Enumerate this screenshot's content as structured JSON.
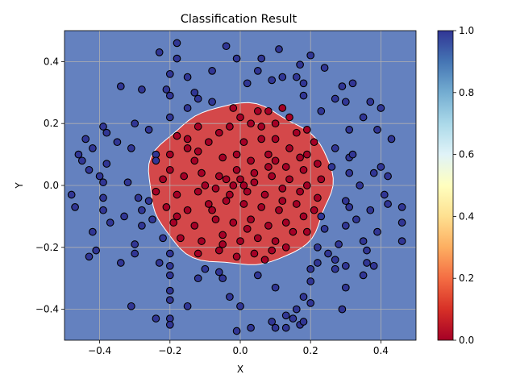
{
  "chart_data": {
    "type": "scatter",
    "title": "Classification Result",
    "xlabel": "X",
    "ylabel": "Y",
    "xlim": [
      -0.5,
      0.5
    ],
    "ylim": [
      -0.5,
      0.5
    ],
    "grid": true,
    "xticks": [
      "−0.4",
      "−0.2",
      "0.0",
      "0.2",
      "0.4"
    ],
    "yticks": [
      "−0.4",
      "−0.2",
      "0.0",
      "0.2",
      "0.4"
    ],
    "decision_region": {
      "shape": "circle",
      "center": [
        0.0,
        0.0
      ],
      "radius": 0.26,
      "inside_value": 0.0,
      "outside_value": 1.0,
      "inside_color": "#d4484a",
      "outside_color": "#6481bf"
    },
    "colorbar": {
      "colormap": "RdYlBu",
      "min": 0.0,
      "max": 1.0,
      "ticks": [
        "0.0",
        "0.2",
        "0.4",
        "0.6",
        "0.8",
        "1.0"
      ]
    },
    "series": [
      {
        "class": 0,
        "color": "#a50026",
        "points": [
          [
            -0.02,
            0.25
          ],
          [
            0.0,
            0.22
          ],
          [
            0.05,
            0.24
          ],
          [
            0.08,
            0.24
          ],
          [
            0.12,
            0.25
          ],
          [
            0.14,
            0.22
          ],
          [
            0.19,
            0.18
          ],
          [
            -0.12,
            0.19
          ],
          [
            -0.18,
            0.16
          ],
          [
            -0.06,
            0.17
          ],
          [
            -0.03,
            0.19
          ],
          [
            0.03,
            0.2
          ],
          [
            0.1,
            0.2
          ],
          [
            0.16,
            0.17
          ],
          [
            -0.2,
            0.1
          ],
          [
            -0.15,
            0.12
          ],
          [
            -0.09,
            0.14
          ],
          [
            0.01,
            0.14
          ],
          [
            0.06,
            0.15
          ],
          [
            0.1,
            0.15
          ],
          [
            0.14,
            0.12
          ],
          [
            0.19,
            0.1
          ],
          [
            0.21,
            0.14
          ],
          [
            -0.2,
            0.05
          ],
          [
            -0.13,
            0.08
          ],
          [
            -0.05,
            0.09
          ],
          [
            0.03,
            0.08
          ],
          [
            0.08,
            0.1
          ],
          [
            0.13,
            0.06
          ],
          [
            0.18,
            0.05
          ],
          [
            0.22,
            0.07
          ],
          [
            -0.22,
            0.02
          ],
          [
            -0.16,
            0.03
          ],
          [
            -0.11,
            0.04
          ],
          [
            -0.06,
            0.03
          ],
          [
            -0.01,
            0.05
          ],
          [
            0.04,
            0.04
          ],
          [
            0.09,
            0.03
          ],
          [
            0.14,
            0.02
          ],
          [
            0.19,
            0.0
          ],
          [
            0.23,
            0.02
          ],
          [
            -0.24,
            -0.02
          ],
          [
            -0.18,
            -0.03
          ],
          [
            -0.12,
            -0.02
          ],
          [
            -0.07,
            -0.01
          ],
          [
            -0.02,
            0.0
          ],
          [
            0.02,
            -0.02
          ],
          [
            0.07,
            -0.03
          ],
          [
            0.12,
            -0.01
          ],
          [
            0.17,
            -0.02
          ],
          [
            0.22,
            -0.04
          ],
          [
            -0.21,
            -0.07
          ],
          [
            -0.15,
            -0.08
          ],
          [
            -0.09,
            -0.06
          ],
          [
            -0.04,
            -0.05
          ],
          [
            0.01,
            -0.06
          ],
          [
            0.06,
            -0.07
          ],
          [
            0.11,
            -0.08
          ],
          [
            0.16,
            -0.06
          ],
          [
            0.21,
            -0.08
          ],
          [
            -0.19,
            -0.12
          ],
          [
            -0.13,
            -0.13
          ],
          [
            -0.07,
            -0.11
          ],
          [
            -0.02,
            -0.12
          ],
          [
            0.03,
            -0.11
          ],
          [
            0.08,
            -0.13
          ],
          [
            0.13,
            -0.12
          ],
          [
            0.18,
            -0.1
          ],
          [
            -0.17,
            -0.17
          ],
          [
            -0.11,
            -0.18
          ],
          [
            -0.05,
            -0.16
          ],
          [
            0.0,
            -0.18
          ],
          [
            0.05,
            -0.17
          ],
          [
            0.1,
            -0.18
          ],
          [
            0.15,
            -0.15
          ],
          [
            0.19,
            -0.15
          ],
          [
            -0.12,
            -0.22
          ],
          [
            -0.06,
            -0.21
          ],
          [
            -0.01,
            -0.23
          ],
          [
            0.04,
            -0.22
          ],
          [
            0.09,
            -0.21
          ],
          [
            0.13,
            -0.2
          ],
          [
            0.07,
            -0.24
          ],
          [
            -0.1,
            0.0
          ],
          [
            -0.04,
            0.02
          ],
          [
            0.0,
            0.02
          ],
          [
            0.01,
            0.0
          ],
          [
            -0.03,
            -0.03
          ],
          [
            0.04,
            0.01
          ],
          [
            -0.08,
            -0.08
          ],
          [
            0.1,
            0.08
          ],
          [
            -0.15,
            0.15
          ],
          [
            0.06,
            0.19
          ],
          [
            -0.01,
            0.1
          ],
          [
            0.12,
            -0.05
          ],
          [
            -0.05,
            -0.19
          ],
          [
            0.17,
            0.09
          ],
          [
            -0.18,
            -0.1
          ],
          [
            0.02,
            -0.14
          ],
          [
            0.08,
            0.06
          ],
          [
            -0.12,
            0.11
          ]
        ]
      },
      {
        "class": 1,
        "color": "#313695",
        "points": [
          [
            -0.18,
            0.46
          ],
          [
            -0.04,
            0.45
          ],
          [
            0.11,
            0.44
          ],
          [
            0.2,
            0.42
          ],
          [
            -0.23,
            0.43
          ],
          [
            -0.18,
            0.41
          ],
          [
            -0.01,
            0.41
          ],
          [
            0.06,
            0.41
          ],
          [
            0.17,
            0.39
          ],
          [
            -0.2,
            0.36
          ],
          [
            -0.15,
            0.35
          ],
          [
            -0.08,
            0.37
          ],
          [
            0.05,
            0.37
          ],
          [
            0.12,
            0.35
          ],
          [
            0.18,
            0.33
          ],
          [
            0.24,
            0.38
          ],
          [
            -0.34,
            0.32
          ],
          [
            -0.28,
            0.31
          ],
          [
            -0.21,
            0.31
          ],
          [
            -0.13,
            0.3
          ],
          [
            0.09,
            0.34
          ],
          [
            0.16,
            0.35
          ],
          [
            0.29,
            0.32
          ],
          [
            0.32,
            0.33
          ],
          [
            -0.2,
            0.29
          ],
          [
            -0.12,
            0.28
          ],
          [
            0.18,
            0.29
          ],
          [
            0.27,
            0.28
          ],
          [
            0.3,
            0.27
          ],
          [
            0.37,
            0.27
          ],
          [
            0.4,
            0.25
          ],
          [
            -0.15,
            0.25
          ],
          [
            -0.2,
            0.22
          ],
          [
            0.23,
            0.24
          ],
          [
            -0.39,
            0.19
          ],
          [
            -0.3,
            0.2
          ],
          [
            0.35,
            0.22
          ],
          [
            0.31,
            0.18
          ],
          [
            -0.44,
            0.15
          ],
          [
            -0.38,
            0.17
          ],
          [
            -0.35,
            0.14
          ],
          [
            -0.42,
            0.12
          ],
          [
            0.39,
            0.18
          ],
          [
            0.43,
            0.15
          ],
          [
            -0.46,
            0.1
          ],
          [
            -0.45,
            0.08
          ],
          [
            -0.31,
            0.12
          ],
          [
            -0.24,
            0.1
          ],
          [
            0.27,
            0.12
          ],
          [
            0.31,
            0.09
          ],
          [
            0.32,
            0.1
          ],
          [
            -0.43,
            0.05
          ],
          [
            -0.38,
            0.07
          ],
          [
            -0.24,
            0.08
          ],
          [
            0.26,
            0.06
          ],
          [
            0.31,
            0.04
          ],
          [
            0.4,
            0.06
          ],
          [
            -0.4,
            0.03
          ],
          [
            -0.39,
            0.01
          ],
          [
            -0.32,
            0.01
          ],
          [
            0.38,
            0.04
          ],
          [
            0.42,
            0.03
          ],
          [
            -0.48,
            -0.03
          ],
          [
            -0.39,
            -0.04
          ],
          [
            -0.29,
            -0.04
          ],
          [
            -0.26,
            -0.05
          ],
          [
            0.3,
            -0.05
          ],
          [
            0.31,
            -0.07
          ],
          [
            0.41,
            -0.03
          ],
          [
            0.46,
            -0.07
          ],
          [
            -0.47,
            -0.07
          ],
          [
            -0.39,
            -0.08
          ],
          [
            -0.33,
            -0.1
          ],
          [
            -0.28,
            -0.08
          ],
          [
            0.23,
            -0.1
          ],
          [
            0.33,
            -0.11
          ],
          [
            0.37,
            -0.08
          ],
          [
            0.46,
            -0.12
          ],
          [
            -0.37,
            -0.12
          ],
          [
            -0.42,
            -0.15
          ],
          [
            -0.25,
            -0.11
          ],
          [
            0.3,
            -0.13
          ],
          [
            0.39,
            -0.15
          ],
          [
            0.46,
            -0.18
          ],
          [
            -0.3,
            -0.19
          ],
          [
            -0.22,
            -0.17
          ],
          [
            0.22,
            -0.2
          ],
          [
            0.28,
            -0.19
          ],
          [
            0.35,
            -0.18
          ],
          [
            -0.41,
            -0.21
          ],
          [
            -0.43,
            -0.23
          ],
          [
            -0.3,
            -0.22
          ],
          [
            -0.2,
            -0.22
          ],
          [
            0.25,
            -0.22
          ],
          [
            0.27,
            -0.24
          ],
          [
            0.36,
            -0.21
          ],
          [
            -0.34,
            -0.25
          ],
          [
            -0.23,
            -0.25
          ],
          [
            -0.2,
            -0.26
          ],
          [
            0.22,
            -0.25
          ],
          [
            0.3,
            -0.26
          ],
          [
            0.36,
            -0.25
          ],
          [
            0.38,
            -0.26
          ],
          [
            -0.2,
            -0.29
          ],
          [
            -0.1,
            -0.27
          ],
          [
            -0.06,
            -0.28
          ],
          [
            0.05,
            -0.29
          ],
          [
            0.2,
            -0.27
          ],
          [
            0.27,
            -0.27
          ],
          [
            -0.12,
            -0.3
          ],
          [
            -0.05,
            -0.3
          ],
          [
            0.2,
            -0.31
          ],
          [
            -0.2,
            -0.34
          ],
          [
            -0.03,
            -0.36
          ],
          [
            -0.2,
            -0.37
          ],
          [
            0.18,
            -0.36
          ],
          [
            0.2,
            -0.38
          ],
          [
            0.3,
            -0.33
          ],
          [
            0.35,
            -0.29
          ],
          [
            -0.31,
            -0.39
          ],
          [
            -0.15,
            -0.39
          ],
          [
            0.0,
            -0.39
          ],
          [
            0.16,
            -0.4
          ],
          [
            0.13,
            -0.42
          ],
          [
            0.17,
            -0.45
          ],
          [
            -0.24,
            -0.43
          ],
          [
            -0.2,
            -0.43
          ],
          [
            -0.2,
            -0.45
          ],
          [
            0.15,
            -0.43
          ],
          [
            0.18,
            -0.44
          ],
          [
            -0.01,
            -0.47
          ],
          [
            0.03,
            -0.46
          ],
          [
            0.1,
            -0.46
          ],
          [
            0.13,
            -0.46
          ],
          [
            0.29,
            -0.4
          ],
          [
            0.09,
            -0.44
          ],
          [
            -0.26,
            0.18
          ],
          [
            0.24,
            -0.14
          ],
          [
            0.02,
            0.33
          ],
          [
            -0.08,
            0.27
          ],
          [
            0.1,
            -0.33
          ],
          [
            -0.28,
            -0.13
          ],
          [
            0.34,
            0.0
          ],
          [
            0.42,
            -0.06
          ]
        ]
      }
    ]
  }
}
